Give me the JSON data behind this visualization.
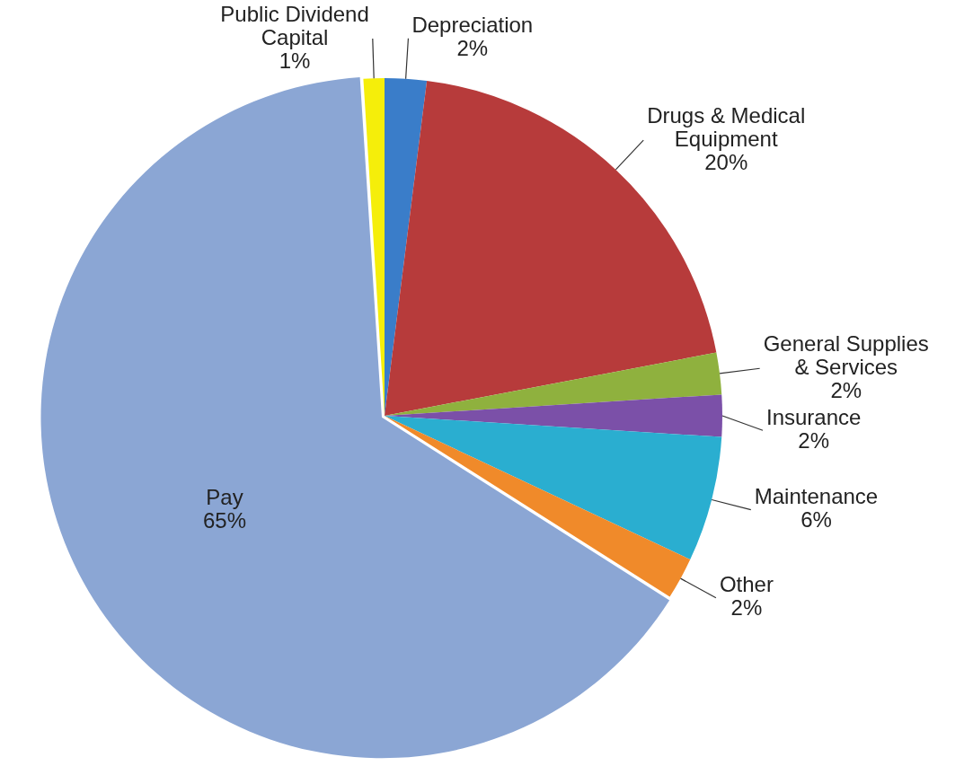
{
  "chart_data": {
    "type": "pie",
    "categories": [
      "Depreciation",
      "Drugs & Medical Equipment",
      "General Supplies & Services",
      "Insurance",
      "Maintenance",
      "Other",
      "Pay",
      "Public Dividend Capital"
    ],
    "values": [
      2,
      20,
      2,
      2,
      6,
      2,
      65,
      1
    ],
    "value_labels": [
      "2%",
      "20%",
      "2%",
      "2%",
      "6%",
      "2%",
      "65%",
      "1%"
    ],
    "colors": [
      "#3a7dc9",
      "#b73b3b",
      "#8fb13e",
      "#7b50a8",
      "#2aaed0",
      "#f08a2a",
      "#8ba6d4",
      "#f5ee0a"
    ],
    "legend": false
  }
}
